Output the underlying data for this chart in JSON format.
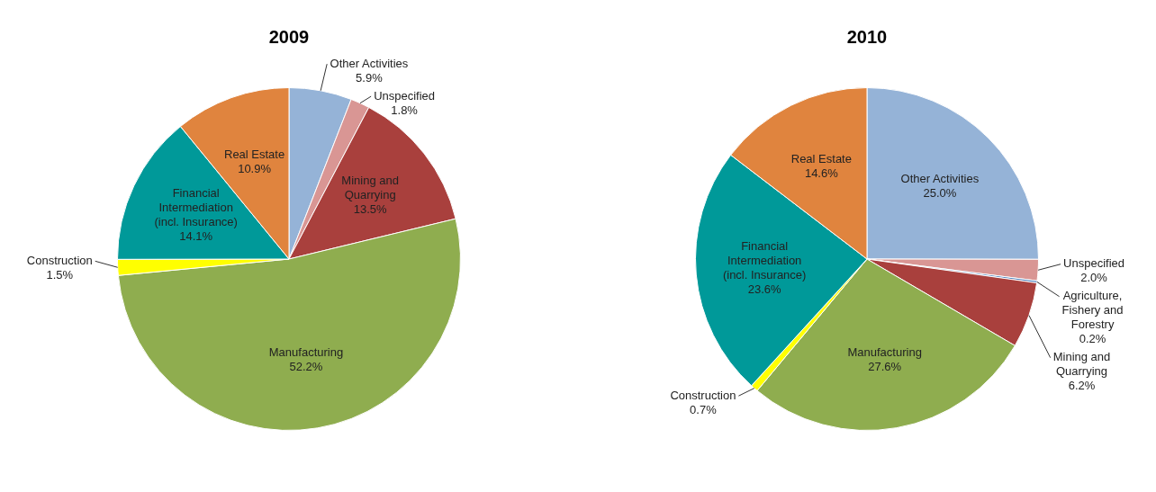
{
  "chart_data": [
    {
      "type": "pie",
      "title": "2009",
      "categories": [
        "Other Activities",
        "Unspecified",
        "Mining and Quarrying",
        "Manufacturing",
        "Construction",
        "Financial Intermediation (incl. Insurance)",
        "Real Estate"
      ],
      "values": [
        5.9,
        1.8,
        13.5,
        52.2,
        1.5,
        14.1,
        10.9
      ],
      "value_labels": [
        "5.9%",
        "1.8%",
        "13.5%",
        "52.2%",
        "1.5%",
        "14.1%",
        "10.9%"
      ],
      "colors": [
        "#95b3d7",
        "#d99694",
        "#a9403d",
        "#8fad4f",
        "#ffff00",
        "#009999",
        "#e0843e"
      ]
    },
    {
      "type": "pie",
      "title": "2010",
      "categories": [
        "Other Activities",
        "Unspecified",
        "Agriculture, Fishery and Forestry",
        "Mining and Quarrying",
        "Manufacturing",
        "Construction",
        "Financial Intermediation (incl. Insurance)",
        "Real Estate"
      ],
      "values": [
        25.0,
        2.0,
        0.2,
        6.2,
        27.6,
        0.7,
        23.6,
        14.6
      ],
      "value_labels": [
        "25.0%",
        "2.0%",
        "0.2%",
        "6.2%",
        "27.6%",
        "0.7%",
        "23.6%",
        "14.6%"
      ],
      "colors": [
        "#95b3d7",
        "#d99694",
        "#4f81bd",
        "#a9403d",
        "#8fad4f",
        "#ffff00",
        "#009999",
        "#e0843e"
      ]
    }
  ]
}
